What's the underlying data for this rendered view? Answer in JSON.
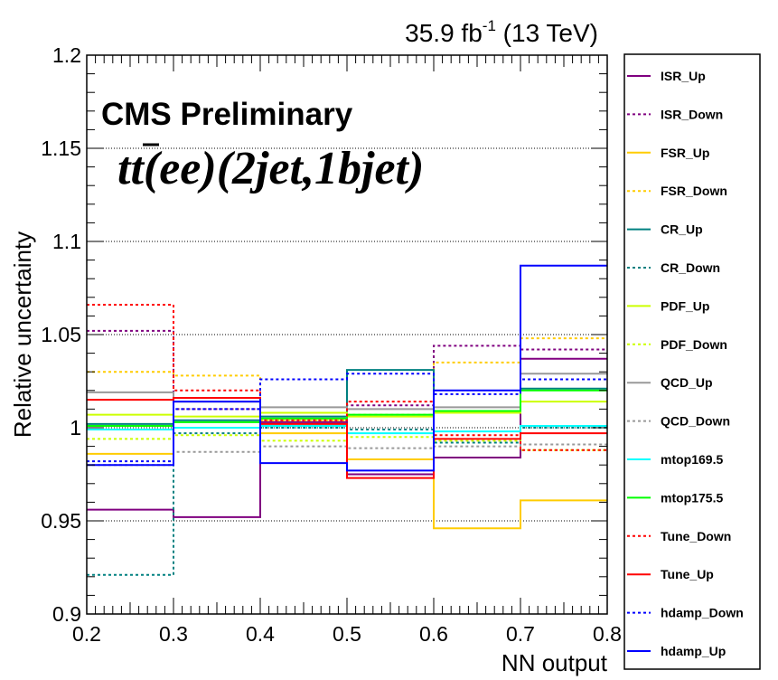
{
  "chart_data": {
    "type": "histogram-step",
    "xlabel": "NN output",
    "ylabel": "Relative uncertainty",
    "xlim": [
      0.2,
      0.8
    ],
    "ylim": [
      0.9,
      1.2
    ],
    "x_ticks": [
      "0.2",
      "0.3",
      "0.4",
      "0.5",
      "0.6",
      "0.7",
      "0.8"
    ],
    "y_ticks": [
      "0.9",
      "0.95",
      "1",
      "1.05",
      "1.1",
      "1.15",
      "1.2"
    ],
    "y_gridlines": [
      0.95,
      1.0,
      1.05,
      1.1,
      1.15
    ],
    "bin_edges": [
      0.2,
      0.3,
      0.4,
      0.5,
      0.6,
      0.7,
      0.8
    ],
    "lumi_label": "35.9 fb",
    "lumi_sup": "-1",
    "lumi_energy": " (13 TeV)",
    "experiment_label": "CMS Preliminary",
    "channel_label": "(ee)(2jet,1bjet)",
    "channel_prefix": "tt",
    "legend_position": "right-outside",
    "series": [
      {
        "name": "ISR_Up",
        "color": "#800080",
        "dash": false,
        "values": [
          0.956,
          0.952,
          1.003,
          0.975,
          0.984,
          1.037
        ]
      },
      {
        "name": "ISR_Down",
        "color": "#800080",
        "dash": true,
        "values": [
          1.052,
          1.01,
          1.001,
          1.012,
          1.044,
          1.042
        ]
      },
      {
        "name": "FSR_Up",
        "color": "#ffcc00",
        "dash": false,
        "values": [
          0.986,
          1.0,
          0.997,
          0.983,
          0.946,
          0.961
        ]
      },
      {
        "name": "FSR_Down",
        "color": "#ffcc00",
        "dash": true,
        "values": [
          1.03,
          1.028,
          1.004,
          1.007,
          1.035,
          1.048
        ]
      },
      {
        "name": "CR_Up",
        "color": "#008080",
        "dash": false,
        "values": [
          1.002,
          1.004,
          1.006,
          1.031,
          1.009,
          1.021
        ]
      },
      {
        "name": "CR_Down",
        "color": "#008080",
        "dash": true,
        "values": [
          0.921,
          0.997,
          1.0,
          0.999,
          0.992,
          1.0
        ]
      },
      {
        "name": "PDF_Up",
        "color": "#ccff00",
        "dash": false,
        "values": [
          1.007,
          1.006,
          1.008,
          1.006,
          1.008,
          1.014
        ]
      },
      {
        "name": "PDF_Down",
        "color": "#ccff00",
        "dash": true,
        "values": [
          0.994,
          0.996,
          0.993,
          0.995,
          0.993,
          0.988
        ]
      },
      {
        "name": "QCD_Up",
        "color": "#999999",
        "dash": false,
        "values": [
          1.019,
          1.014,
          1.011,
          1.01,
          1.011,
          1.029
        ]
      },
      {
        "name": "QCD_Down",
        "color": "#999999",
        "dash": true,
        "values": [
          0.98,
          0.987,
          0.99,
          0.989,
          0.99,
          0.991
        ]
      },
      {
        "name": "mtop169.5",
        "color": "#00ffff",
        "dash": false,
        "values": [
          0.999,
          1.0,
          1.001,
          0.997,
          0.998,
          1.001
        ]
      },
      {
        "name": "mtop175.5",
        "color": "#00ff00",
        "dash": false,
        "values": [
          1.001,
          1.003,
          1.005,
          1.007,
          1.009,
          1.02
        ]
      },
      {
        "name": "Tune_Down",
        "color": "#ff0000",
        "dash": true,
        "values": [
          1.066,
          1.02,
          1.004,
          1.014,
          0.996,
          0.988
        ]
      },
      {
        "name": "Tune_Up",
        "color": "#ff0000",
        "dash": false,
        "values": [
          1.015,
          1.016,
          1.002,
          0.973,
          0.994,
          0.997
        ]
      },
      {
        "name": "hdamp_Down",
        "color": "#0000ff",
        "dash": true,
        "values": [
          0.982,
          1.01,
          1.026,
          1.029,
          1.018,
          1.026
        ]
      },
      {
        "name": "hdamp_Up",
        "color": "#0000ff",
        "dash": false,
        "values": [
          0.98,
          1.014,
          0.981,
          0.977,
          1.02,
          1.087
        ]
      }
    ]
  }
}
